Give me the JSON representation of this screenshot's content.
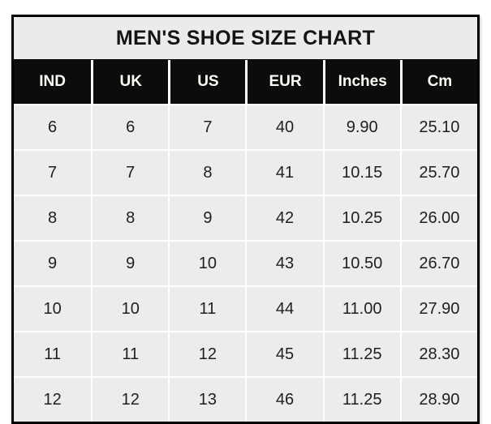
{
  "chart_data": {
    "type": "table",
    "title": "MEN'S SHOE SIZE CHART",
    "columns": [
      "IND",
      "UK",
      "US",
      "EUR",
      "Inches",
      "Cm"
    ],
    "rows": [
      [
        "6",
        "6",
        "7",
        "40",
        "9.90",
        "25.10"
      ],
      [
        "7",
        "7",
        "8",
        "41",
        "10.15",
        "25.70"
      ],
      [
        "8",
        "8",
        "9",
        "42",
        "10.25",
        "26.00"
      ],
      [
        "9",
        "9",
        "10",
        "43",
        "10.50",
        "26.70"
      ],
      [
        "10",
        "10",
        "11",
        "44",
        "11.00",
        "27.90"
      ],
      [
        "11",
        "11",
        "12",
        "45",
        "11.25",
        "28.30"
      ],
      [
        "12",
        "12",
        "13",
        "46",
        "11.25",
        "28.90"
      ]
    ],
    "layout": {
      "grid": "white gridlines between gray cells",
      "legend": "none",
      "columns_equal_width": true
    },
    "colors": {
      "outer_border": "#000000",
      "title_background": "#ebebeb",
      "header_background": "#0c0c0c",
      "header_text": "#ffffff",
      "cell_background": "#ececec",
      "grid_line": "#ffffff",
      "body_text": "#1f1f1f",
      "page_background": "#ffffff"
    }
  }
}
